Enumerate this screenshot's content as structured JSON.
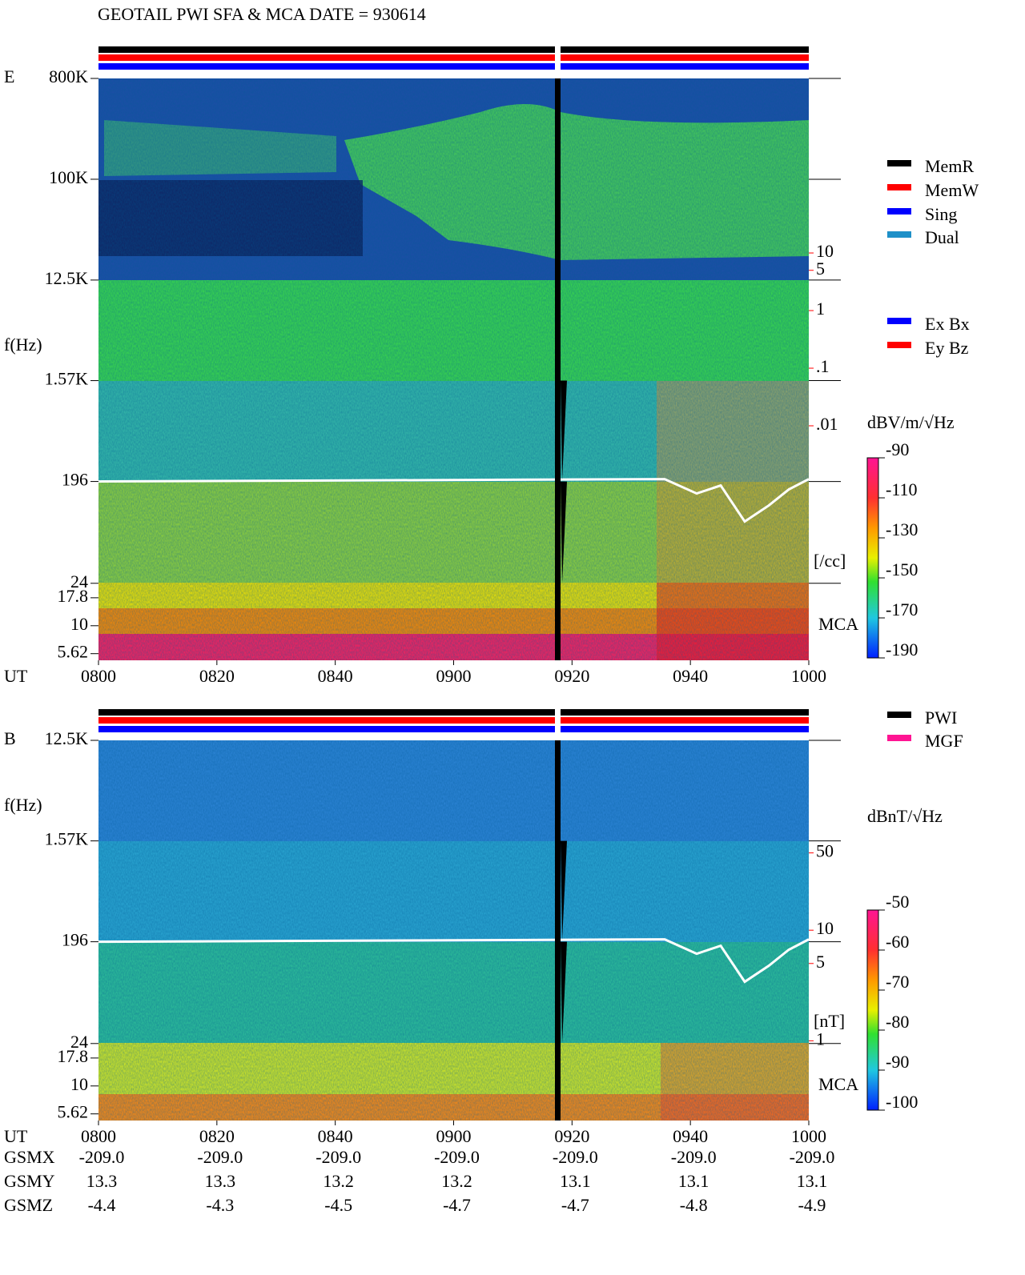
{
  "title": "GEOTAIL  PWI SFA & MCA   DATE = 930614",
  "chart_data": [
    {
      "type": "spectrogram",
      "panel_label": "E",
      "ylabel": "f(Hz)",
      "xlabel": "UT",
      "log_y": true,
      "ylim": [
        4.9,
        800000
      ],
      "yticks": [
        {
          "value": 800000,
          "label": "800K"
        },
        {
          "value": 100000,
          "label": "100K"
        },
        {
          "value": 12500,
          "label": "12.5K"
        },
        {
          "value": 1570,
          "label": "1.57K"
        },
        196,
        24,
        17.8,
        10,
        5.62
      ],
      "y2lim": [
        8.5e-07,
        10700
      ],
      "y2ticks": [
        10,
        5,
        1,
        {
          "value": 0.1,
          "label": ".1"
        },
        {
          "value": 0.01,
          "label": ".01"
        }
      ],
      "y2label": "[/cc]",
      "y2color": "#ff0000",
      "mca_label": "MCA",
      "xticks": [
        "0800",
        "0820",
        "0840",
        "0900",
        "0920",
        "0940",
        "1000"
      ],
      "colorbar": {
        "label": "dBV/m/√Hz",
        "lim": [
          -190,
          -90
        ],
        "ticks": [
          -90,
          -110,
          -130,
          -150,
          -170,
          -190
        ]
      },
      "legend": [
        {
          "name": "MemR",
          "color": "#000000"
        },
        {
          "name": "MemW",
          "color": "#ff0000"
        },
        {
          "name": "Sing",
          "color": "#0000ff"
        },
        {
          "name": "Dual",
          "color": "#1e90c8"
        }
      ],
      "legend2": [
        {
          "name": "Ex Bx",
          "color": "#0000ff"
        },
        {
          "name": "Ey Bz",
          "color": "#ff0000"
        }
      ]
    },
    {
      "type": "spectrogram",
      "panel_label": "B",
      "ylabel": "f(Hz)",
      "xlabel": "UT",
      "log_y": true,
      "ylim": [
        4.9,
        12500
      ],
      "yticks": [
        {
          "value": 12500,
          "label": "12.5K"
        },
        {
          "value": 1570,
          "label": "1.57K"
        },
        196,
        24,
        17.8,
        10,
        5.62
      ],
      "y2lim": [
        0.19,
        521
      ],
      "y2ticks": [
        50,
        10,
        5,
        1
      ],
      "y2label": "[nT]",
      "y2color": "#ff0000",
      "mca_label": "MCA",
      "xticks": [
        "0800",
        "0820",
        "0840",
        "0900",
        "0920",
        "0940",
        "1000"
      ],
      "colorbar": {
        "label": "dBnT/√Hz",
        "lim": [
          -100,
          -50
        ],
        "ticks": [
          -50,
          -60,
          -70,
          -80,
          -90,
          -100
        ]
      },
      "legend": [
        {
          "name": "PWI",
          "color": "#000000"
        },
        {
          "name": "MGF",
          "color": "#ff1493"
        }
      ]
    }
  ],
  "orbit": {
    "rows": [
      {
        "label": "GSMX",
        "values": [
          "-209.0",
          "-209.0",
          "-209.0",
          "-209.0",
          "-209.0",
          "-209.0",
          "-209.0"
        ]
      },
      {
        "label": "GSMY",
        "values": [
          "13.3",
          "13.3",
          "13.2",
          "13.2",
          "13.1",
          "13.1",
          "13.1"
        ]
      },
      {
        "label": "GSMZ",
        "values": [
          "-4.4",
          "-4.3",
          "-4.5",
          "-4.7",
          "-4.7",
          "-4.8",
          "-4.9"
        ]
      }
    ]
  }
}
